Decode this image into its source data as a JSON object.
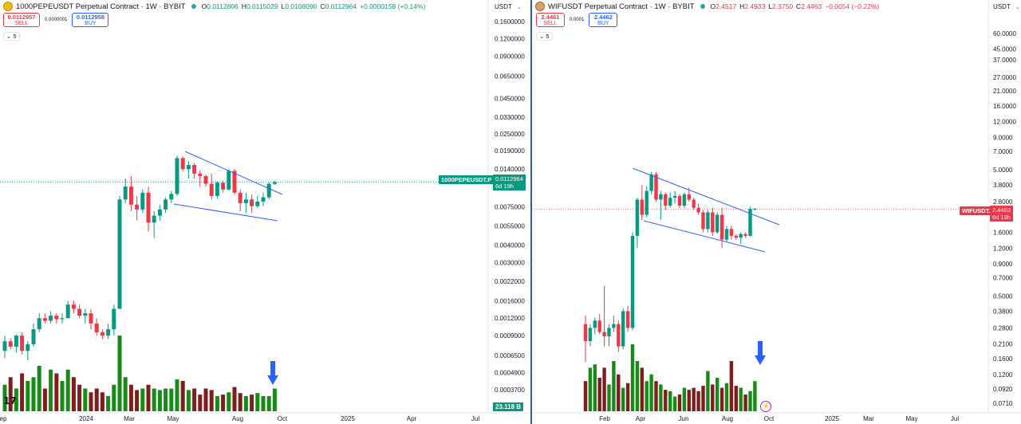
{
  "left": {
    "title": "1000PEPEUSDT Perpetual Contract · 1W · BYBIT",
    "ohlc": [
      {
        "k": "O",
        "v": "0.0112806"
      },
      {
        "k": "H",
        "v": "0.0115029"
      },
      {
        "k": "L",
        "v": "0.0108090"
      },
      {
        "k": "C",
        "v": "0.0112964"
      },
      {
        "k": "",
        "v": "+0.0000158 (+0.14%)"
      }
    ],
    "sell_price": "0.0112957",
    "sell_label": "SELL",
    "spread": "0.0000001",
    "buy_price": "0.0112958",
    "buy_label": "BUY",
    "indicator_count": "5",
    "currency": "USDT",
    "symbol_tag": "1000PEPEUSDT.P",
    "last_price": "0.0112964",
    "countdown": "6d 19h",
    "volume_label": "23.118 B",
    "price_ticks": [
      "0.1600000",
      "0.1200000",
      "0.0900000",
      "0.0650000",
      "0.0450000",
      "0.0330000",
      "0.0250000",
      "0.0190000",
      "0.0140000",
      "0.0075000",
      "0.0055000",
      "0.0040000",
      "0.0030000",
      "0.0022000",
      "0.0016000",
      "0.0012000",
      "0.0009000",
      "0.0006500",
      "0.0004900",
      "0.0003700"
    ],
    "time_ticks": [
      "ep",
      "2024",
      "Mar",
      "May",
      "Aug",
      "Oct",
      "2025",
      "Apr",
      "Jul"
    ]
  },
  "right": {
    "title": "WIFUSDT Perpetual Contract · 1W · BYBIT",
    "ohlc": [
      {
        "k": "O",
        "v": "2.4517"
      },
      {
        "k": "H",
        "v": "2.4933"
      },
      {
        "k": "L",
        "v": "2.3750"
      },
      {
        "k": "C",
        "v": "2.4463"
      },
      {
        "k": "",
        "v": "−0.0054 (−0.22%)"
      }
    ],
    "sell_price": "2.4461",
    "sell_label": "SELL",
    "spread": "0.0001",
    "buy_price": "2.4462",
    "buy_label": "BUY",
    "indicator_count": "5",
    "currency": "USDT",
    "symbol_tag": "WIFUSDT.P",
    "last_price": "2.4463",
    "countdown": "6d 19h",
    "price_ticks": [
      "60.0000",
      "45.0000",
      "37.0000",
      "27.0000",
      "21.0000",
      "16.0000",
      "12.0000",
      "9.0000",
      "7.0000",
      "5.0000",
      "3.8000",
      "2.8000",
      "1.6000",
      "1.2000",
      "0.9000",
      "0.7000",
      "0.5000",
      "0.3800",
      "0.2800",
      "0.2100",
      "0.1600",
      "0.1200",
      "0.0920",
      "0.0710"
    ],
    "time_ticks": [
      "Feb",
      "Apr",
      "Jun",
      "Aug",
      "Oct",
      "2025",
      "Mar",
      "May",
      "Jul"
    ]
  },
  "colors": {
    "up": "#089981",
    "down": "#f23645",
    "vol_up": "#178a17",
    "vol_down": "#7f1d1d",
    "trend": "#2962ff",
    "arrow": "#2962ff"
  },
  "chart_data": [
    {
      "type": "candlestick",
      "title": "1000PEPEUSDT Perpetual Contract · 1W · BYBIT",
      "scale": "log",
      "ylim": [
        0.00028,
        0.175
      ],
      "ohlc_approx": [
        [
          0.0007,
          0.0009,
          0.00062,
          0.00082
        ],
        [
          0.00082,
          0.00086,
          0.00072,
          0.00075
        ],
        [
          0.00075,
          0.00092,
          0.00068,
          0.0009
        ],
        [
          0.0009,
          0.00095,
          0.00066,
          0.0007
        ],
        [
          0.0007,
          0.00082,
          0.0006,
          0.00078
        ],
        [
          0.00078,
          0.0011,
          0.00075,
          0.001
        ],
        [
          0.001,
          0.0013,
          0.00095,
          0.0012
        ],
        [
          0.0012,
          0.0013,
          0.0011,
          0.00115
        ],
        [
          0.00115,
          0.00135,
          0.0011,
          0.00125
        ],
        [
          0.00125,
          0.0013,
          0.0011,
          0.00118
        ],
        [
          0.00118,
          0.0013,
          0.0011,
          0.0012
        ],
        [
          0.0012,
          0.0016,
          0.0012,
          0.0015
        ],
        [
          0.0015,
          0.0016,
          0.0013,
          0.0014
        ],
        [
          0.0014,
          0.0015,
          0.0012,
          0.00125
        ],
        [
          0.00125,
          0.0014,
          0.0011,
          0.0013
        ],
        [
          0.0013,
          0.0014,
          0.001,
          0.0011
        ],
        [
          0.0011,
          0.0012,
          0.0009,
          0.00095
        ],
        [
          0.00095,
          0.001,
          0.00085,
          0.0009
        ],
        [
          0.0009,
          0.0011,
          0.00085,
          0.001
        ],
        [
          0.001,
          0.0015,
          0.0009,
          0.0014
        ],
        [
          0.0014,
          0.009,
          0.0014,
          0.0085
        ],
        [
          0.0085,
          0.012,
          0.008,
          0.0105
        ],
        [
          0.0105,
          0.0125,
          0.007,
          0.0078
        ],
        [
          0.0078,
          0.009,
          0.006,
          0.0072
        ],
        [
          0.0072,
          0.01,
          0.0068,
          0.0095
        ],
        [
          0.0095,
          0.0105,
          0.005,
          0.0058
        ],
        [
          0.0058,
          0.007,
          0.0045,
          0.0065
        ],
        [
          0.0065,
          0.0078,
          0.006,
          0.0072
        ],
        [
          0.0072,
          0.0088,
          0.0068,
          0.0085
        ],
        [
          0.0085,
          0.0098,
          0.008,
          0.0093
        ],
        [
          0.0093,
          0.0175,
          0.009,
          0.0168
        ],
        [
          0.0168,
          0.0172,
          0.0135,
          0.014
        ],
        [
          0.014,
          0.016,
          0.012,
          0.015
        ],
        [
          0.015,
          0.0155,
          0.012,
          0.013
        ],
        [
          0.013,
          0.0138,
          0.0105,
          0.0125
        ],
        [
          0.0125,
          0.0128,
          0.0105,
          0.011
        ],
        [
          0.011,
          0.013,
          0.0085,
          0.009
        ],
        [
          0.009,
          0.0115,
          0.0086,
          0.0112
        ],
        [
          0.0112,
          0.0116,
          0.0095,
          0.01
        ],
        [
          0.01,
          0.014,
          0.0098,
          0.0136
        ],
        [
          0.0136,
          0.014,
          0.0092,
          0.0095
        ],
        [
          0.0095,
          0.01,
          0.007,
          0.008
        ],
        [
          0.008,
          0.0095,
          0.0068,
          0.0085
        ],
        [
          0.0085,
          0.0092,
          0.0068,
          0.0076
        ],
        [
          0.0076,
          0.009,
          0.0074,
          0.0082
        ],
        [
          0.0082,
          0.0095,
          0.0076,
          0.0088
        ],
        [
          0.0088,
          0.0112,
          0.0085,
          0.011
        ],
        [
          0.011,
          0.0115,
          0.0108,
          0.0113
        ]
      ],
      "volume_relative": [
        0.35,
        0.45,
        0.3,
        0.5,
        0.4,
        0.45,
        0.6,
        0.3,
        0.55,
        0.5,
        0.4,
        0.55,
        0.45,
        0.35,
        0.3,
        0.25,
        0.3,
        0.25,
        0.2,
        0.35,
        1.0,
        0.45,
        0.35,
        0.28,
        0.3,
        0.35,
        0.3,
        0.28,
        0.3,
        0.3,
        0.42,
        0.4,
        0.28,
        0.3,
        0.22,
        0.3,
        0.28,
        0.2,
        0.22,
        0.25,
        0.32,
        0.24,
        0.2,
        0.22,
        0.24,
        0.2,
        0.2,
        0.3
      ],
      "last_price": 0.0112964,
      "volume_last": "23.118 B"
    },
    {
      "type": "candlestick",
      "title": "WIFUSDT Perpetual Contract · 1W · BYBIT",
      "scale": "log",
      "ylim": [
        0.065,
        90
      ],
      "ohlc_approx": [
        [
          0.3,
          0.35,
          0.15,
          0.22
        ],
        [
          0.22,
          0.3,
          0.2,
          0.28
        ],
        [
          0.28,
          0.34,
          0.25,
          0.32
        ],
        [
          0.32,
          0.36,
          0.25,
          0.26
        ],
        [
          0.26,
          0.6,
          0.2,
          0.24
        ],
        [
          0.24,
          0.3,
          0.2,
          0.28
        ],
        [
          0.28,
          0.35,
          0.26,
          0.3
        ],
        [
          0.3,
          0.32,
          0.18,
          0.2
        ],
        [
          0.2,
          0.4,
          0.19,
          0.38
        ],
        [
          0.38,
          0.42,
          0.26,
          0.28
        ],
        [
          0.28,
          1.6,
          0.27,
          1.5
        ],
        [
          1.5,
          3.0,
          1.2,
          2.9
        ],
        [
          2.9,
          3.8,
          2.0,
          2.2
        ],
        [
          2.2,
          3.7,
          2.1,
          3.4
        ],
        [
          3.4,
          4.8,
          3.2,
          4.6
        ],
        [
          4.6,
          4.8,
          2.8,
          2.9
        ],
        [
          2.9,
          3.4,
          2.0,
          3.2
        ],
        [
          3.2,
          3.3,
          2.4,
          2.6
        ],
        [
          2.6,
          3.3,
          2.5,
          3.0
        ],
        [
          3.0,
          3.4,
          2.7,
          3.1
        ],
        [
          3.1,
          3.2,
          2.5,
          2.6
        ],
        [
          2.6,
          3.3,
          2.5,
          3.2
        ],
        [
          3.2,
          3.6,
          2.8,
          2.9
        ],
        [
          2.9,
          3.0,
          2.4,
          2.5
        ],
        [
          2.5,
          2.7,
          2.2,
          2.3
        ],
        [
          2.3,
          2.4,
          1.6,
          1.7
        ],
        [
          1.7,
          2.4,
          1.6,
          2.3
        ],
        [
          2.3,
          2.5,
          1.5,
          1.6
        ],
        [
          1.6,
          2.3,
          1.55,
          2.2
        ],
        [
          2.2,
          2.5,
          1.2,
          1.4
        ],
        [
          1.4,
          1.8,
          1.35,
          1.7
        ],
        [
          1.7,
          1.8,
          1.4,
          1.5
        ],
        [
          1.5,
          1.55,
          1.4,
          1.45
        ],
        [
          1.45,
          1.6,
          1.3,
          1.55
        ],
        [
          1.55,
          1.6,
          1.45,
          1.5
        ],
        [
          1.5,
          2.55,
          1.48,
          2.45
        ],
        [
          2.45,
          2.49,
          2.38,
          2.45
        ]
      ],
      "volume_relative": [
        0.45,
        0.65,
        0.7,
        0.5,
        0.65,
        0.4,
        0.75,
        0.55,
        0.35,
        0.42,
        1.0,
        0.75,
        0.65,
        0.45,
        0.55,
        0.45,
        0.4,
        0.32,
        0.3,
        0.22,
        0.25,
        0.35,
        0.32,
        0.35,
        0.3,
        0.38,
        0.6,
        0.4,
        0.5,
        0.35,
        0.42,
        0.75,
        0.38,
        0.35,
        0.25,
        0.3,
        0.45
      ],
      "last_price": 2.4463
    }
  ]
}
